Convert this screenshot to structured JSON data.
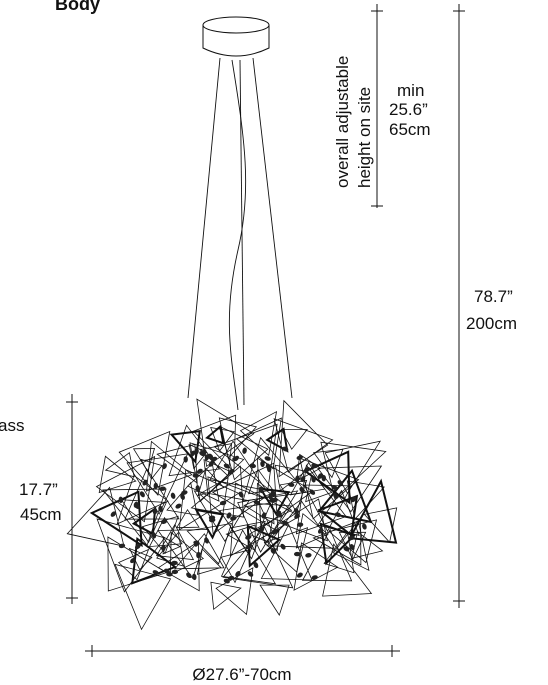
{
  "header": {
    "title_fragment": "Body"
  },
  "annotations": {
    "adjustable_line1": "overall adjustable",
    "adjustable_line2": "height on site",
    "min_label": "min",
    "min_inches": "25.6”",
    "min_cm": "65cm",
    "total_inches": "78.7”",
    "total_cm": "200cm",
    "side_fragment": "ass",
    "body_inches": "17.7”",
    "body_cm": "45cm",
    "diameter": "Ø27.6”-70cm"
  },
  "colors": {
    "line": "#111111",
    "background": "#ffffff"
  }
}
